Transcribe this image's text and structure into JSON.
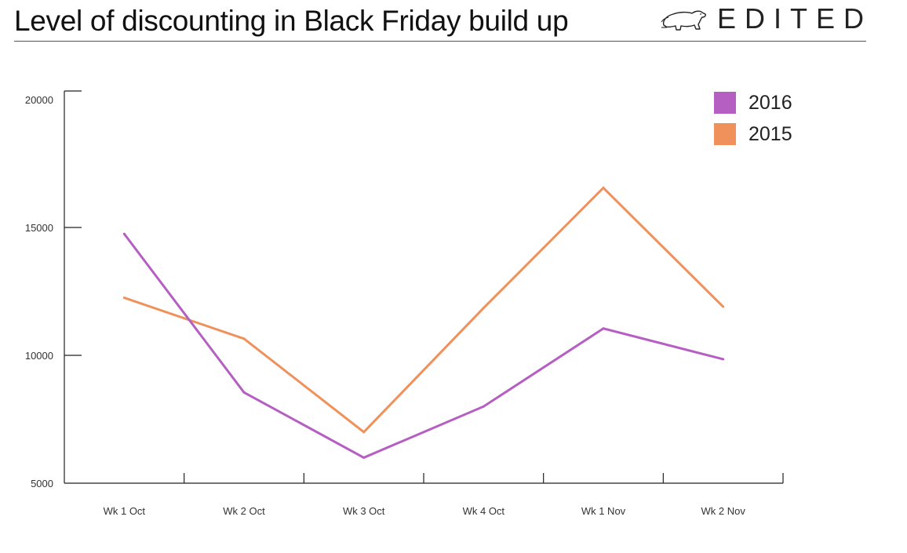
{
  "header": {
    "title": "Level of discounting in Black Friday build up",
    "brand": "EDITED",
    "brand_logo_icon": "polar-bear-icon"
  },
  "chart_data": {
    "type": "line",
    "title": "Level of discounting in Black Friday build up",
    "xlabel": "",
    "ylabel": "",
    "categories": [
      "Wk 1 Oct",
      "Wk 2 Oct",
      "Wk 3 Oct",
      "Wk 4 Oct",
      "Wk 1 Nov",
      "Wk 2 Nov"
    ],
    "y_ticks": [
      5000,
      10000,
      15000,
      20000
    ],
    "ylim": [
      5000,
      20000
    ],
    "grid": false,
    "legend_position": "top-right",
    "series": [
      {
        "name": "2016",
        "color": "#b55fc2",
        "values": [
          14750,
          8550,
          6000,
          8000,
          11050,
          9850
        ]
      },
      {
        "name": "2015",
        "color": "#f0915c",
        "values": [
          12250,
          10650,
          7000,
          11850,
          16550,
          11900
        ]
      }
    ]
  }
}
